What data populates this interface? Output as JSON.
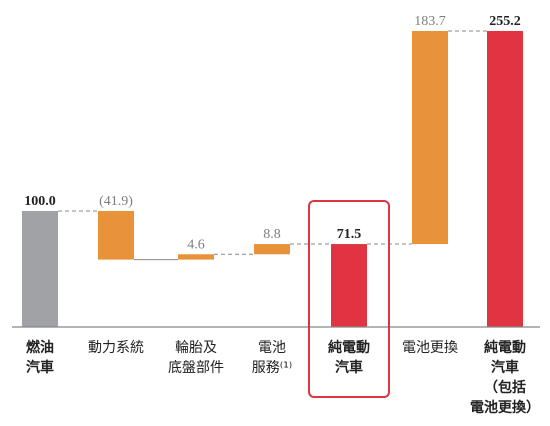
{
  "chart_data": {
    "type": "waterfall",
    "title": "",
    "xlabel": "",
    "ylabel": "",
    "ylim": [
      0,
      270
    ],
    "grid": false,
    "legend": "none",
    "items": [
      {
        "kind": "total",
        "label_lines": [
          "燃油",
          "汽車"
        ],
        "value": 100.0,
        "display": "100.0",
        "color": "#a1a2a5",
        "bold": true
      },
      {
        "kind": "delta",
        "label_lines": [
          "動力系統"
        ],
        "value": -41.9,
        "display": "(41.9)",
        "color": "#e8923a",
        "bold": false
      },
      {
        "kind": "delta",
        "label_lines": [
          "輪胎及",
          "底盤部件"
        ],
        "value": 4.6,
        "display": "4.6",
        "color": "#e8923a",
        "bold": false
      },
      {
        "kind": "delta",
        "label_lines": [
          "電池",
          "服務⁽¹⁾"
        ],
        "value": 8.8,
        "display": "8.8",
        "color": "#e8923a",
        "bold": false
      },
      {
        "kind": "total",
        "label_lines": [
          "純電動",
          "汽車"
        ],
        "value": 71.5,
        "display": "71.5",
        "color": "#e03442",
        "bold": true,
        "highlighted": true
      },
      {
        "kind": "delta",
        "label_lines": [
          "電池更換"
        ],
        "value": 183.7,
        "display": "183.7",
        "color": "#e8923a",
        "bold": false
      },
      {
        "kind": "total",
        "label_lines": [
          "純電動",
          "汽車",
          "（包括",
          "電池更換）"
        ],
        "value": 255.2,
        "display": "255.2",
        "color": "#e03442",
        "bold": true
      }
    ],
    "colors": {
      "axis": "#888888",
      "connector": "#888888",
      "highlight_box": "#e03442",
      "value_text_normal": "#7f7f7f",
      "value_text_bold": "#222222",
      "category_text": "#222222"
    }
  }
}
